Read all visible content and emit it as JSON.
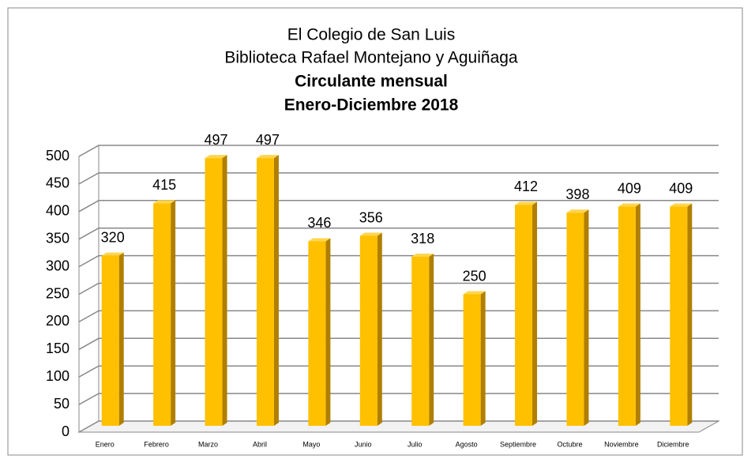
{
  "chart_data": {
    "type": "bar3d",
    "title_lines": [
      "El Colegio de San Luis",
      "Biblioteca Rafael Montejano y Aguiñaga",
      "Circulante mensual",
      "Enero-Diciembre 2018"
    ],
    "categories": [
      "Enero",
      "Febrero",
      "Marzo",
      "Abril",
      "Mayo",
      "Junio",
      "Julio",
      "Agosto",
      "Septiembre",
      "Octubre",
      "Noviembre",
      "Diciembre"
    ],
    "values": [
      320,
      415,
      497,
      497,
      346,
      356,
      318,
      250,
      412,
      398,
      409,
      409
    ],
    "color": "#ffc000",
    "ylim": [
      0,
      500
    ],
    "yticks": [
      0,
      50,
      100,
      150,
      200,
      250,
      300,
      350,
      400,
      450,
      500
    ],
    "grid": true
  }
}
